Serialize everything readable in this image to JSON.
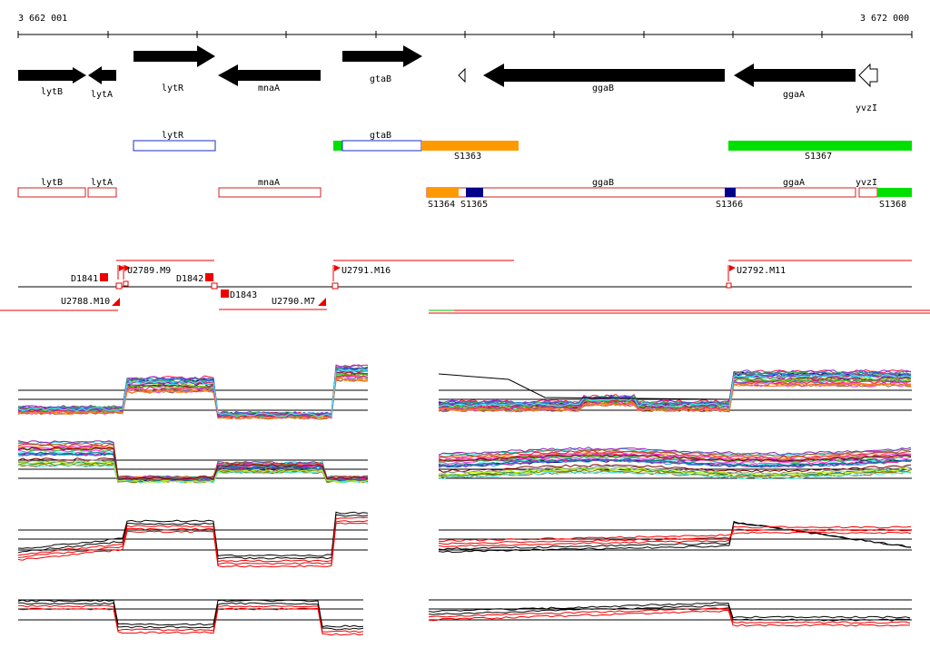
{
  "ruler": {
    "start_label": "3 662 001",
    "end_label": "3 672 000"
  },
  "genes": [
    {
      "name": "lytB",
      "strand": "-"
    },
    {
      "name": "lytA",
      "strand": "-"
    },
    {
      "name": "lytR",
      "strand": "+"
    },
    {
      "name": "mnaA",
      "strand": "-"
    },
    {
      "name": "gtaB",
      "strand": "+"
    },
    {
      "name": "",
      "strand": "-",
      "style": "outline"
    },
    {
      "name": "ggaB",
      "strand": "-"
    },
    {
      "name": "ggaA",
      "strand": "-"
    },
    {
      "name": "yvzI",
      "strand": "-",
      "style": "outline"
    }
  ],
  "transcripts_plus": [
    {
      "label": "lytR"
    },
    {
      "label": "gtaB"
    },
    {
      "label": "S1363"
    },
    {
      "label": "S1367"
    }
  ],
  "transcripts_minus": [
    {
      "label": "lytB"
    },
    {
      "label": "lytA"
    },
    {
      "label": "mnaA"
    },
    {
      "label": "ggaB"
    },
    {
      "label": "ggaA"
    },
    {
      "label": "yvzI"
    },
    {
      "label": "S1364"
    },
    {
      "label": "S1365"
    },
    {
      "label": "S1366"
    },
    {
      "label": "S1368"
    }
  ],
  "features": [
    {
      "label": "D1841"
    },
    {
      "label": "U2789.M9"
    },
    {
      "label": "D1842"
    },
    {
      "label": "D1843"
    },
    {
      "label": "U2788.M10"
    },
    {
      "label": "U2790.M7"
    },
    {
      "label": "U2791.M16"
    },
    {
      "label": "U2792.M11"
    }
  ],
  "colors": {
    "gene": "#000000",
    "transcript_plus": "#1a2fc0",
    "transcript_minus": "#d02020",
    "segment_orange": "#ff9900",
    "segment_green": "#00e000",
    "segment_navy": "#00008b",
    "feature_red": "#ee0000"
  }
}
